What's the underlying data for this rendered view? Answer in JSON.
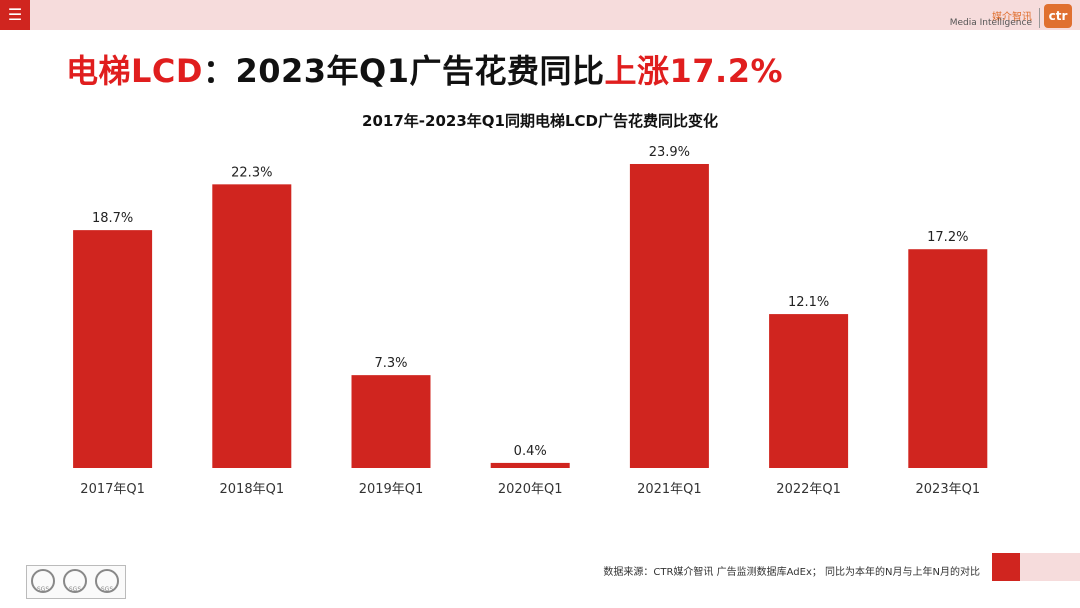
{
  "header": {
    "menu_glyph": "☰",
    "logo_zh": "媒介智讯",
    "logo_en": "Media Intelligence",
    "logo_mark": "ctr"
  },
  "headline": {
    "part1": "电梯LCD",
    "part2": "：2023年Q1广告花费同比",
    "part3": "上涨17.2%"
  },
  "footer": {
    "source_note": "数据来源：CTR媒介智讯 广告监测数据库AdEx； 同比为本年的N月与上年N月的对比",
    "badge_label": "SGS"
  },
  "colors": {
    "bar": "#d0251f",
    "accent": "#e01e1e",
    "band": "#f6dcdc"
  },
  "chart_data": {
    "type": "bar",
    "title": "2017年-2023年Q1同期电梯LCD广告花费同比变化",
    "categories": [
      "2017年Q1",
      "2018年Q1",
      "2019年Q1",
      "2020年Q1",
      "2021年Q1",
      "2022年Q1",
      "2023年Q1"
    ],
    "values": [
      18.7,
      22.3,
      7.3,
      0.4,
      23.9,
      12.1,
      17.2
    ],
    "data_labels": [
      "18.7%",
      "22.3%",
      "7.3%",
      "0.4%",
      "23.9%",
      "12.1%",
      "17.2%"
    ],
    "xlabel": "",
    "ylabel": "",
    "ylim": [
      0,
      25
    ],
    "grid": false
  }
}
